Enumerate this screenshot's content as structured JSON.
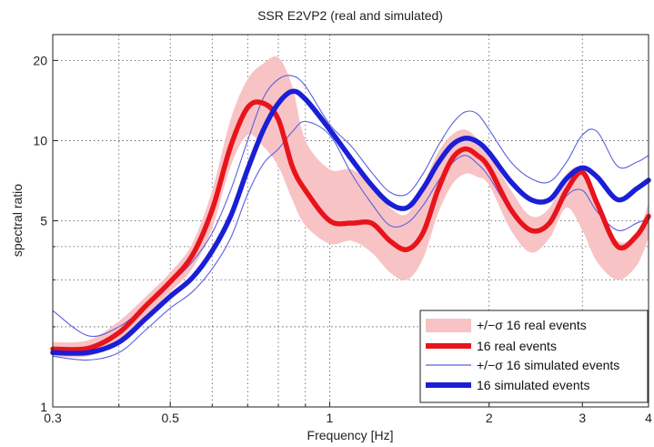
{
  "chart_data": {
    "type": "line",
    "title": "SSR E2VP2 (real and simulated)",
    "xlabel": "Frequency [Hz]",
    "ylabel": "spectral ratio",
    "xscale": "log",
    "yscale": "log",
    "xlim": [
      0.3,
      4
    ],
    "ylim": [
      1,
      25
    ],
    "x_ticks": [
      0.3,
      0.5,
      1,
      2,
      3,
      4
    ],
    "x_tick_labels": [
      "0.3",
      "0.5",
      "1",
      "2",
      "3",
      "4"
    ],
    "y_ticks": [
      1,
      5,
      10,
      20
    ],
    "y_tick_labels": [
      "1",
      "5",
      "10",
      "20"
    ],
    "grid": true,
    "legend_position": "bottom-right",
    "colors": {
      "real": "#e8141c",
      "real_band": "#f8c3c5",
      "simulated": "#1a1fd6",
      "simulated_sigma": "#5a60e0"
    },
    "series": [
      {
        "name": "+/−σ 16 real events",
        "style": "band",
        "x": [
          0.3,
          0.35,
          0.4,
          0.45,
          0.5,
          0.55,
          0.6,
          0.65,
          0.7,
          0.75,
          0.8,
          0.85,
          0.9,
          1.0,
          1.1,
          1.2,
          1.3,
          1.4,
          1.5,
          1.6,
          1.7,
          1.8,
          1.9,
          2.0,
          2.2,
          2.4,
          2.6,
          2.8,
          3.0,
          3.2,
          3.5,
          3.8,
          4.0
        ],
        "upper": [
          1.75,
          1.78,
          2.1,
          2.6,
          3.2,
          4.1,
          6.5,
          12.0,
          17.0,
          19.5,
          20.5,
          16.0,
          10.0,
          7.8,
          7.8,
          6.8,
          5.6,
          5.3,
          6.8,
          9.0,
          10.5,
          11.0,
          10.2,
          9.0,
          6.5,
          5.2,
          5.6,
          7.5,
          7.8,
          5.8,
          4.2,
          4.5,
          5.8
        ],
        "lower": [
          1.55,
          1.55,
          1.75,
          2.2,
          2.7,
          3.3,
          4.7,
          8.0,
          10.5,
          9.5,
          8.0,
          6.0,
          4.8,
          4.1,
          4.2,
          3.8,
          3.2,
          3.0,
          3.6,
          5.3,
          6.8,
          7.5,
          7.3,
          6.8,
          4.6,
          3.8,
          4.3,
          5.6,
          4.6,
          3.5,
          3.0,
          3.4,
          4.3
        ]
      },
      {
        "name": "16 real events",
        "style": "thick",
        "x": [
          0.3,
          0.35,
          0.4,
          0.45,
          0.5,
          0.55,
          0.6,
          0.65,
          0.7,
          0.75,
          0.8,
          0.85,
          0.9,
          1.0,
          1.1,
          1.2,
          1.3,
          1.4,
          1.5,
          1.6,
          1.7,
          1.8,
          1.9,
          2.0,
          2.2,
          2.4,
          2.6,
          2.8,
          3.0,
          3.2,
          3.5,
          3.8,
          4.0
        ],
        "values": [
          1.65,
          1.66,
          1.9,
          2.4,
          2.95,
          3.7,
          5.5,
          9.5,
          13.3,
          13.8,
          12.0,
          8.0,
          6.5,
          5.0,
          4.9,
          4.9,
          4.2,
          3.9,
          4.5,
          6.5,
          8.5,
          9.3,
          8.8,
          7.9,
          5.5,
          4.6,
          4.9,
          6.5,
          7.6,
          5.8,
          4.0,
          4.4,
          5.2
        ]
      },
      {
        "name": "+/−σ 16 simulated events",
        "style": "thin",
        "x": [
          0.3,
          0.35,
          0.4,
          0.45,
          0.5,
          0.55,
          0.6,
          0.65,
          0.7,
          0.75,
          0.8,
          0.85,
          0.9,
          1.0,
          1.1,
          1.2,
          1.3,
          1.4,
          1.5,
          1.6,
          1.7,
          1.8,
          1.9,
          2.0,
          2.2,
          2.4,
          2.6,
          2.8,
          3.0,
          3.2,
          3.5,
          3.8,
          4.0
        ],
        "values": [
          2.3,
          1.85,
          2.0,
          2.4,
          2.9,
          3.5,
          4.5,
          6.5,
          10.0,
          14.5,
          17.0,
          17.5,
          16.0,
          11.5,
          9.5,
          7.6,
          6.4,
          6.3,
          7.5,
          9.5,
          11.5,
          12.8,
          12.6,
          11.0,
          8.3,
          7.2,
          7.0,
          8.3,
          10.5,
          10.8,
          8.0,
          8.3,
          8.8
        ]
      },
      {
        "name": "",
        "style": "thin",
        "x": [
          0.3,
          0.35,
          0.4,
          0.45,
          0.5,
          0.55,
          0.6,
          0.65,
          0.7,
          0.75,
          0.8,
          0.85,
          0.9,
          1.0,
          1.1,
          1.2,
          1.3,
          1.4,
          1.5,
          1.6,
          1.7,
          1.8,
          1.9,
          2.0,
          2.2,
          2.4,
          2.6,
          2.8,
          3.0,
          3.2,
          3.5,
          3.8,
          4.0
        ],
        "values": [
          1.55,
          1.5,
          1.6,
          1.95,
          2.35,
          2.7,
          3.3,
          4.3,
          6.3,
          8.2,
          9.3,
          10.8,
          11.8,
          10.5,
          7.5,
          5.8,
          4.8,
          4.9,
          5.7,
          7.0,
          8.2,
          8.8,
          8.2,
          7.3,
          5.4,
          4.6,
          4.8,
          6.2,
          6.5,
          5.4,
          4.6,
          4.9,
          5.1
        ]
      },
      {
        "name": "16 simulated events",
        "style": "thick",
        "x": [
          0.3,
          0.35,
          0.4,
          0.45,
          0.5,
          0.55,
          0.6,
          0.65,
          0.7,
          0.75,
          0.8,
          0.85,
          0.9,
          1.0,
          1.1,
          1.2,
          1.3,
          1.4,
          1.5,
          1.6,
          1.7,
          1.8,
          1.9,
          2.0,
          2.2,
          2.4,
          2.6,
          2.8,
          3.0,
          3.2,
          3.5,
          3.8,
          4.0
        ],
        "values": [
          1.6,
          1.6,
          1.75,
          2.15,
          2.6,
          3.05,
          3.85,
          5.2,
          7.8,
          11.0,
          13.8,
          15.3,
          14.3,
          11.0,
          8.5,
          6.8,
          5.8,
          5.6,
          6.6,
          8.2,
          9.6,
          10.2,
          9.9,
          9.0,
          7.0,
          6.0,
          6.0,
          7.2,
          7.9,
          7.3,
          6.0,
          6.6,
          7.1
        ]
      }
    ],
    "legend": [
      {
        "label": "+/−σ 16 real events",
        "marker": "band",
        "color": "#f8c3c5"
      },
      {
        "label": "16 real events",
        "marker": "thick-line",
        "color": "#e8141c"
      },
      {
        "label": "+/−σ 16 simulated events",
        "marker": "thin-line",
        "color": "#5a60e0"
      },
      {
        "label": "16 simulated events",
        "marker": "thick-line",
        "color": "#1a1fd6"
      }
    ]
  }
}
